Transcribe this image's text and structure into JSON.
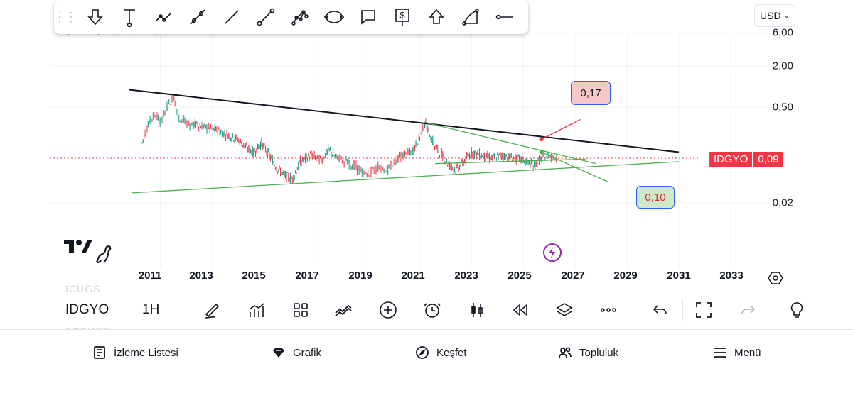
{
  "toolbar": {
    "drag_handle_icon": "drag-dots-icon",
    "tools": [
      {
        "name": "arrow-down-tool",
        "icon": "arrow-down-icon"
      },
      {
        "name": "price-range-tool",
        "icon": "vertical-range-icon"
      },
      {
        "name": "trend-path-tool",
        "icon": "polyline-icon"
      },
      {
        "name": "trend-line-dot-tool",
        "icon": "line-with-dots-icon"
      },
      {
        "name": "ray-tool",
        "icon": "line-icon"
      },
      {
        "name": "extended-line-tool",
        "icon": "line-circles-icon"
      },
      {
        "name": "pattern-tool",
        "icon": "pattern-icon"
      },
      {
        "name": "ellipse-tool",
        "icon": "ellipse-icon"
      },
      {
        "name": "callout-tool",
        "icon": "speech-bubble-icon"
      },
      {
        "name": "price-note-tool",
        "icon": "dollar-sign-icon"
      },
      {
        "name": "arrow-up-tool",
        "icon": "arrow-up-icon"
      },
      {
        "name": "arc-tool",
        "icon": "arc-icon"
      },
      {
        "name": "horizontal-ray-tool",
        "icon": "horizontal-ray-icon"
      }
    ]
  },
  "currency": {
    "label": "USD"
  },
  "legend": {
    "ohlc_partial": "0,09 +0,00 (+0,07%)"
  },
  "price_scale": {
    "labels": [
      "6,00",
      "2,00",
      "0,50",
      "0,02"
    ]
  },
  "ticker_badge": {
    "symbol": "IDGYO",
    "price": "0,09",
    "color": "#f23645"
  },
  "callouts": {
    "upper": "0,17",
    "lower": "0,10"
  },
  "time_axis": {
    "years": [
      "2011",
      "2013",
      "2015",
      "2017",
      "2019",
      "2021",
      "2023",
      "2025",
      "2027",
      "2029",
      "2031",
      "2033"
    ]
  },
  "watchlist_ghost": {
    "item1": "ICUGS",
    "item2": "BTCUSD"
  },
  "bottom_toolbar": {
    "symbol": "IDGYO",
    "interval": "1H",
    "icons": [
      "draw-pen-icon",
      "indicators-icon",
      "layouts-icon",
      "compare-icon",
      "add-icon",
      "alert-clock-icon",
      "candles-icon",
      "replay-icon",
      "layers-icon",
      "more-icon",
      "undo-icon",
      "fullscreen-icon",
      "redo-icon",
      "bulb-icon"
    ]
  },
  "nav": {
    "watchlist": "İzleme Listesi",
    "chart": "Grafik",
    "explore": "Keşfet",
    "community": "Topluluk",
    "menu": "Menü"
  },
  "colors": {
    "up": "#089981",
    "down": "#f23645",
    "resistance": "#131722",
    "support": "#4caf50",
    "accent": "#2962ff",
    "price_line": "#f23645"
  },
  "chart_data": {
    "type": "line",
    "title": "",
    "symbol": "IDGYO",
    "scale": "log",
    "ylim": [
      0.013,
      6.0
    ],
    "xlim": [
      2009.4,
      2034.3
    ],
    "x": [
      2010.3,
      2010.5,
      2010.8,
      2011.0,
      2011.3,
      2011.5,
      2011.7,
      2012.0,
      2012.4,
      2012.8,
      2013.2,
      2013.6,
      2014.0,
      2014.3,
      2014.6,
      2014.9,
      2015.2,
      2015.5,
      2015.8,
      2016.1,
      2016.4,
      2016.8,
      2017.2,
      2017.5,
      2017.8,
      2018.2,
      2018.6,
      2018.9,
      2019.2,
      2019.5,
      2019.8,
      2020.1,
      2020.4,
      2020.7,
      2021.0,
      2021.2,
      2021.4,
      2021.6,
      2021.8,
      2022.1,
      2022.4,
      2022.7,
      2023.0,
      2023.4,
      2023.8,
      2024.2,
      2024.6,
      2025.0,
      2025.4,
      2025.7,
      2026.0,
      2026.3
    ],
    "y": [
      0.15,
      0.28,
      0.4,
      0.3,
      0.55,
      0.75,
      0.35,
      0.3,
      0.28,
      0.25,
      0.23,
      0.2,
      0.17,
      0.13,
      0.11,
      0.15,
      0.1,
      0.065,
      0.05,
      0.045,
      0.08,
      0.1,
      0.085,
      0.12,
      0.09,
      0.08,
      0.065,
      0.05,
      0.06,
      0.07,
      0.06,
      0.09,
      0.1,
      0.11,
      0.18,
      0.3,
      0.2,
      0.13,
      0.11,
      0.075,
      0.06,
      0.08,
      0.11,
      0.1,
      0.09,
      0.1,
      0.09,
      0.085,
      0.07,
      0.09,
      0.1,
      0.09
    ],
    "last_price": 0.09,
    "trendlines": [
      {
        "name": "resistance",
        "x": [
          2009.8,
          2031.0
        ],
        "y": [
          0.9,
          0.11
        ],
        "color": "#131722"
      },
      {
        "name": "support",
        "x": [
          2009.9,
          2031.0
        ],
        "y": [
          0.028,
          0.08
        ],
        "color": "#4caf50"
      },
      {
        "name": "upper-wedge",
        "x": [
          2021.2,
          2027.8
        ],
        "y": [
          0.3,
          0.075
        ],
        "color": "#4caf50"
      },
      {
        "name": "lower-wedge",
        "x": [
          2021.6,
          2027.4
        ],
        "y": [
          0.075,
          0.087
        ],
        "color": "#4caf50"
      },
      {
        "name": "target-down",
        "x": [
          2025.7,
          2028.3
        ],
        "y": [
          0.11,
          0.04
        ],
        "color": "#4caf50"
      },
      {
        "name": "target-up",
        "x": [
          2025.7,
          2027.2
        ],
        "y": [
          0.17,
          0.33
        ],
        "color": "#f23645"
      }
    ],
    "annotations": [
      "0,17",
      "0,10"
    ],
    "price_ticks": [
      6.0,
      2.0,
      0.5,
      0.02
    ],
    "grid": true,
    "legend": "none"
  }
}
